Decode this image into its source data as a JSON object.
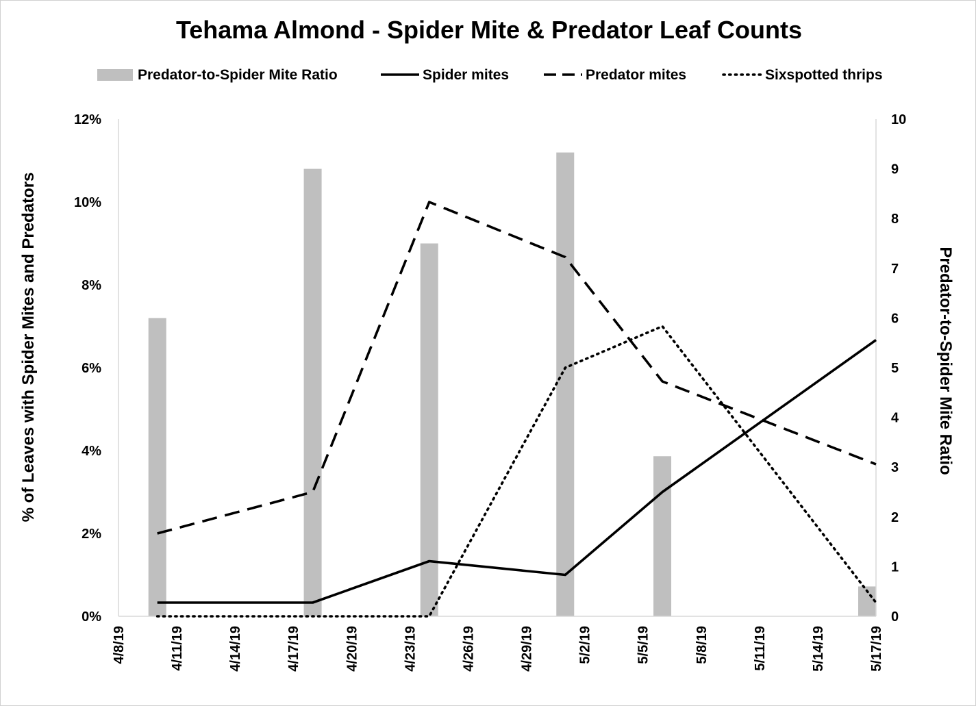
{
  "chart_data": {
    "type": "bar+line",
    "title": "Tehama Almond - Spider Mite & Predator Leaf Counts",
    "y_left": {
      "label": "% of Leaves with Spider Mites and Predators",
      "ticks": [
        "0%",
        "2%",
        "4%",
        "6%",
        "8%",
        "10%",
        "12%"
      ],
      "range": [
        0,
        12
      ]
    },
    "y_right": {
      "label": "Predator-to-Spider Mite Ratio",
      "ticks": [
        "0",
        "1",
        "2",
        "3",
        "4",
        "5",
        "6",
        "7",
        "8",
        "9",
        "10"
      ],
      "range": [
        0,
        10
      ]
    },
    "x_ticks": [
      "4/8/19",
      "4/11/19",
      "4/14/19",
      "4/17/19",
      "4/20/19",
      "4/23/19",
      "4/26/19",
      "4/29/19",
      "5/2/19",
      "5/5/19",
      "5/8/19",
      "5/11/19",
      "5/14/19",
      "5/17/19"
    ],
    "x_range": [
      "4/8/19",
      "5/17/19"
    ],
    "legend_position": "top",
    "grid": false,
    "series": [
      {
        "name": "Predator-to-Spider Mite Ratio",
        "type": "bar",
        "axis": "right",
        "color": "#bfbfbf",
        "points": [
          {
            "x": "4/10/19",
            "y": 6.0
          },
          {
            "x": "4/18/19",
            "y": 9.0
          },
          {
            "x": "4/24/19",
            "y": 7.5
          },
          {
            "x": "5/1/19",
            "y": 9.33
          },
          {
            "x": "5/6/19",
            "y": 3.22
          },
          {
            "x": "5/17/19",
            "y": 0.6
          }
        ]
      },
      {
        "name": "Spider mites",
        "type": "line",
        "style": "solid",
        "axis": "left",
        "color": "#000000",
        "points": [
          {
            "x": "4/10/19",
            "y": 0.33
          },
          {
            "x": "4/18/19",
            "y": 0.33
          },
          {
            "x": "4/24/19",
            "y": 1.33
          },
          {
            "x": "5/1/19",
            "y": 1.0
          },
          {
            "x": "5/6/19",
            "y": 3.0
          },
          {
            "x": "5/17/19",
            "y": 6.67
          }
        ]
      },
      {
        "name": "Predator mites",
        "type": "line",
        "style": "dashed",
        "axis": "left",
        "color": "#000000",
        "points": [
          {
            "x": "4/10/19",
            "y": 2.0
          },
          {
            "x": "4/18/19",
            "y": 3.0
          },
          {
            "x": "4/24/19",
            "y": 10.0
          },
          {
            "x": "5/1/19",
            "y": 8.67
          },
          {
            "x": "5/6/19",
            "y": 5.67
          },
          {
            "x": "5/17/19",
            "y": 3.67
          }
        ]
      },
      {
        "name": "Sixspotted thrips",
        "type": "line",
        "style": "dotted",
        "axis": "left",
        "color": "#000000",
        "points": [
          {
            "x": "4/10/19",
            "y": 0
          },
          {
            "x": "4/18/19",
            "y": 0
          },
          {
            "x": "4/24/19",
            "y": 0
          },
          {
            "x": "5/1/19",
            "y": 6.0
          },
          {
            "x": "5/6/19",
            "y": 7.0
          },
          {
            "x": "5/17/19",
            "y": 0.33
          }
        ]
      }
    ]
  }
}
